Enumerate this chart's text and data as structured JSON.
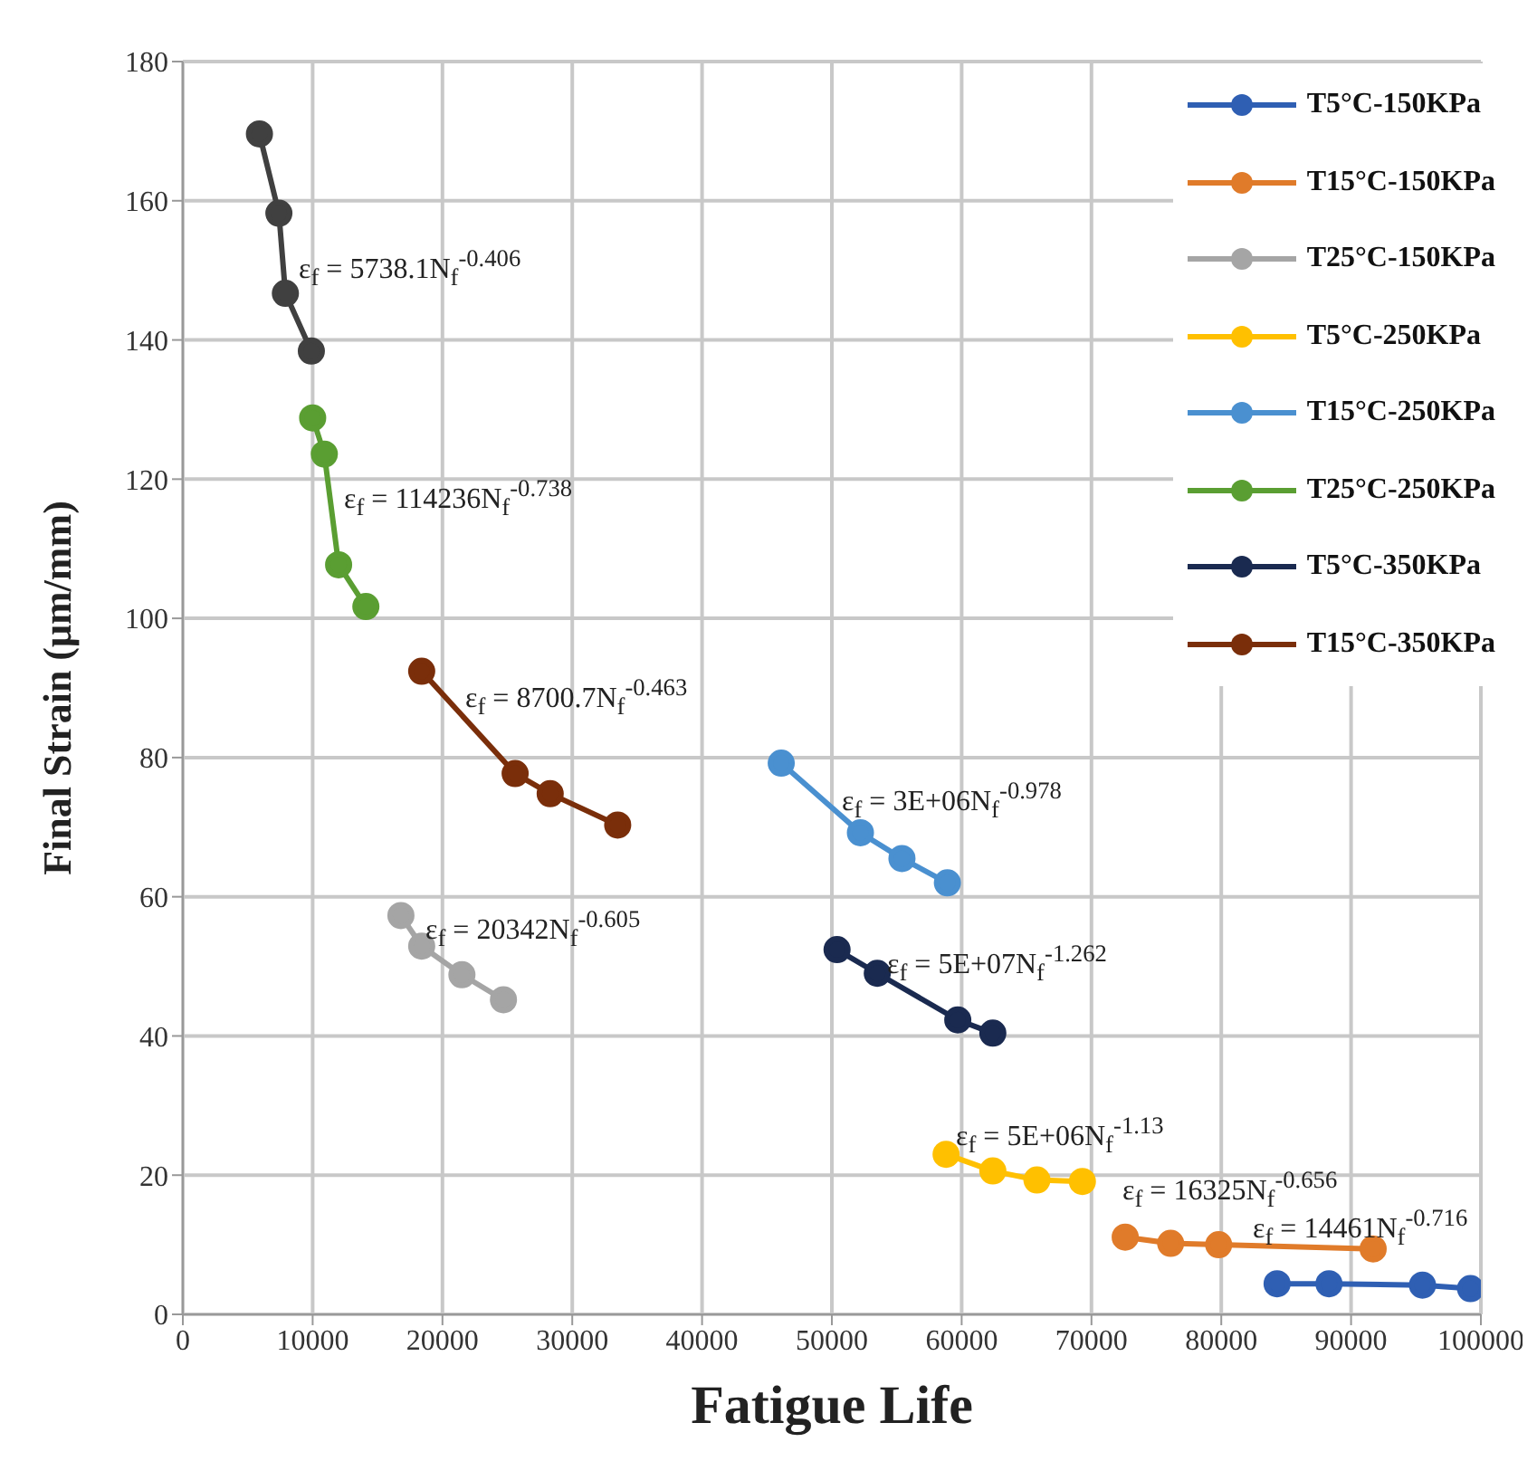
{
  "chart_data": {
    "type": "line",
    "xlabel": "Fatigue Life",
    "ylabel": "Final Strain (μm/mm)",
    "xlim": [
      0,
      100000
    ],
    "xticks": [
      0,
      10000,
      20000,
      30000,
      40000,
      50000,
      60000,
      70000,
      80000,
      90000,
      100000
    ],
    "ylim": [
      0,
      180
    ],
    "yticks": [
      0,
      20,
      40,
      60,
      80,
      100,
      120,
      140,
      160,
      180
    ],
    "grid": true,
    "legend": "top right",
    "marker": "circle",
    "line_style": "solid",
    "series": [
      {
        "name": "T5°C-150KPa",
        "color": "#2f5fb3",
        "x": [
          84300,
          88300,
          95500,
          99200
        ],
        "values": [
          4.4,
          4.4,
          4.2,
          3.7
        ]
      },
      {
        "name": "T15°C-150KPa",
        "color": "#e07b2a",
        "x": [
          72600,
          76100,
          79800,
          91700
        ],
        "values": [
          11.1,
          10.2,
          10.0,
          9.4
        ]
      },
      {
        "name": "T25°C-150KPa",
        "color": "#a5a5a5",
        "x": [
          16800,
          18400,
          21500,
          24700
        ],
        "values": [
          57.3,
          52.9,
          48.8,
          45.2
        ]
      },
      {
        "name": "T5°C-250KPa",
        "color": "#ffc000",
        "x": [
          58800,
          62400,
          65800,
          69300
        ],
        "values": [
          23.0,
          20.6,
          19.3,
          19.1
        ]
      },
      {
        "name": "T15°C-250KPa",
        "color": "#4a90d0",
        "x": [
          46100,
          52200,
          55400,
          58900
        ],
        "values": [
          79.2,
          69.2,
          65.5,
          62.0
        ]
      },
      {
        "name": "T25°C-250KPa",
        "color": "#5a9e32",
        "x": [
          10000,
          10900,
          12000,
          14100
        ],
        "values": [
          128.8,
          123.6,
          107.7,
          101.7
        ]
      },
      {
        "name": "T5°C-350KPa",
        "color": "#1a2a50",
        "x": [
          50400,
          53500,
          59700,
          62400
        ],
        "values": [
          52.4,
          49.0,
          42.3,
          40.4
        ]
      },
      {
        "name": "T15°C-350KPa",
        "color": "#7a2e0a",
        "x": [
          18400,
          25600,
          28300,
          33500
        ],
        "values": [
          92.4,
          77.7,
          74.8,
          70.3
        ]
      },
      {
        "color": "#404040",
        "x": [
          5900,
          7400,
          7900,
          9900
        ],
        "values": [
          169.6,
          158.2,
          146.7,
          138.4
        ]
      }
    ],
    "annotations": [
      "ε$_{f}$ = 5738.1N$_{f}$$^{-0.406}$",
      "ε$_{f}$ = 114236N$_{f}$$^{-0.738}$",
      "ε$_{f}$ = 8700.7N$_{f}$$^{-0.463}$",
      "ε$_{f}$ = 3E+06N$_{f}$$^{-0.978}$",
      "ε$_{f}$ = 20342N$_{f}$$^{-0.605}$",
      "ε$_{f}$ = 5E+07N$_{f}$$^{-1.262}$",
      "ε$_{f}$ = 5E+06N$_{f}$$^{-1.13}$",
      "ε$_{f}$ = 16325N$_{f}$$^{-0.656}$",
      "ε$_{f}$ = 14461N$_{f}$$^{-0.716}$"
    ]
  }
}
